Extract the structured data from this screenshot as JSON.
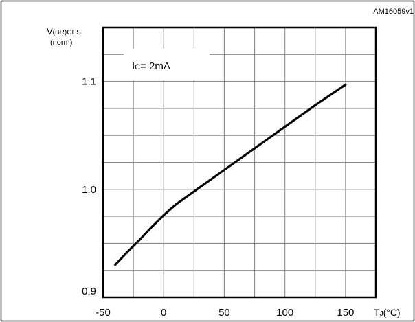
{
  "chart_data": {
    "type": "line",
    "figure_id": "AM16059v1",
    "ylabel": {
      "main": "V",
      "subscript": "(BR)CES",
      "unit": "(norm)"
    },
    "xlabel": {
      "main": "T",
      "subscript": "J",
      "unit": "(°C)"
    },
    "annotation": {
      "main": "I",
      "subscript": "C",
      "value": "= 2mA"
    },
    "xlim": [
      -50,
      175
    ],
    "ylim": [
      0.9,
      1.15
    ],
    "x_ticks": [
      {
        "value": -50,
        "label": "-50"
      },
      {
        "value": 0,
        "label": "0"
      },
      {
        "value": 50,
        "label": "50"
      },
      {
        "value": 100,
        "label": "100"
      },
      {
        "value": 150,
        "label": "150"
      }
    ],
    "y_ticks": [
      {
        "value": 0.9,
        "label": "0.9"
      },
      {
        "value": 1.0,
        "label": "1.0"
      },
      {
        "value": 1.1,
        "label": "1.1"
      }
    ],
    "grid": true,
    "series": [
      {
        "x": [
          -40,
          -30,
          -20,
          -10,
          0,
          10,
          25,
          50,
          75,
          100,
          125,
          150
        ],
        "y": [
          0.93,
          0.942,
          0.953,
          0.965,
          0.976,
          0.986,
          0.998,
          1.018,
          1.038,
          1.058,
          1.078,
          1.097
        ]
      }
    ]
  }
}
